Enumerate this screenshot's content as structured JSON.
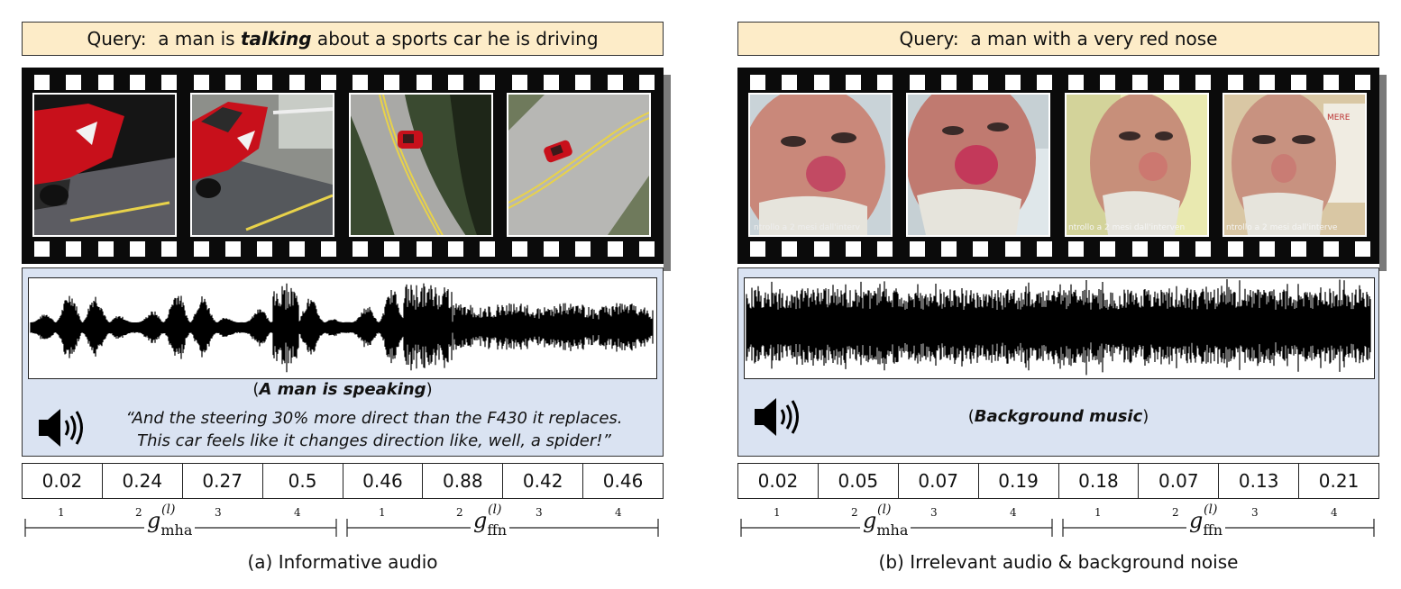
{
  "panels": [
    {
      "query_prefix": "Query:  ",
      "query_pre": "a man is ",
      "query_emph": "talking",
      "query_post": " about a sports car he is driving",
      "audio_label_open": "(",
      "audio_label": "A man is speaking",
      "audio_label_close": ")",
      "transcript_line1": "“And the steering 30% more direct than the F430 it replaces.",
      "transcript_line2": "This car feels like it changes direction like, well, a spider!”",
      "gate_values": [
        "0.02",
        "0.24",
        "0.27",
        "0.5",
        "0.46",
        "0.88",
        "0.42",
        "0.46"
      ],
      "tick_labels": [
        "1",
        "2",
        "3",
        "4"
      ],
      "gate_labels": [
        "mha",
        "ffn"
      ],
      "gate_symbol": "g",
      "gate_superscript": "(l)",
      "subcaption": "(a) Informative audio"
    },
    {
      "query_prefix": "Query:  ",
      "query_pre": "a man with a very red nose",
      "query_emph": "",
      "query_post": "",
      "audio_label_open": "(",
      "audio_label": "Background music",
      "audio_label_close": ")",
      "transcript_line1": "",
      "transcript_line2": "",
      "gate_values": [
        "0.02",
        "0.05",
        "0.07",
        "0.19",
        "0.18",
        "0.07",
        "0.13",
        "0.21"
      ],
      "tick_labels": [
        "1",
        "2",
        "3",
        "4"
      ],
      "gate_labels": [
        "mha",
        "ffn"
      ],
      "gate_symbol": "g",
      "gate_superscript": "(l)",
      "subcaption": "(b) Irrelevant audio & background noise"
    }
  ],
  "frame_overlay_text": [
    "ntrollo a 2 mesi dall'interv",
    "ntrollo a 2 mesi dall'interven",
    "ntrollo a 2 mesi dall'interve"
  ],
  "colors": {
    "query_bg": "#fdecc8",
    "audio_bg": "#dae3f2",
    "car_red": "#d3121e",
    "film": "#0b0b0b"
  },
  "icons": [
    "speaker-icon"
  ]
}
